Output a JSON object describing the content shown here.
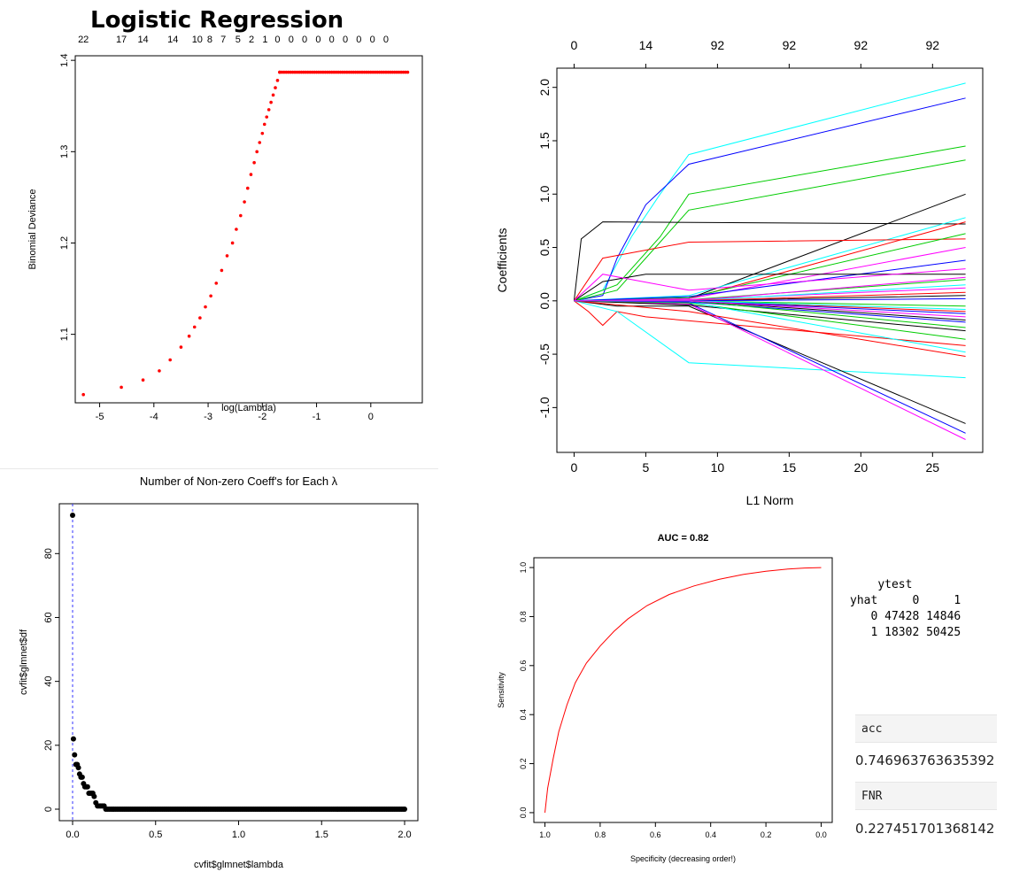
{
  "page_title": "Logistic Regression",
  "confusion": {
    "col_header": "ytest",
    "row_header": "yhat",
    "col_labels": [
      "0",
      "1"
    ],
    "rows": [
      {
        "label": "0",
        "values": [
          47428,
          14846
        ]
      },
      {
        "label": "1",
        "values": [
          18302,
          50425
        ]
      }
    ]
  },
  "metrics": [
    {
      "name": "acc",
      "value": "0.746963763635392"
    },
    {
      "name": "FNR",
      "value": "0.227451701368142"
    }
  ],
  "chart_data": [
    {
      "id": "cv",
      "type": "scatter",
      "title": "",
      "xlabel": "log(Lambda)",
      "ylabel": "Binomial Deviance",
      "xlim": [
        -5.45,
        0.95
      ],
      "ylim": [
        1.025,
        1.405
      ],
      "x_ticks": [
        -5,
        -4,
        -3,
        -2,
        -1,
        0
      ],
      "y_ticks": [
        1.1,
        1.2,
        1.3,
        1.4
      ],
      "top_axis_labels": [
        "22",
        "17",
        "14",
        "14",
        "10",
        "8",
        "7",
        "5",
        "2",
        "1",
        "0",
        "0",
        "0",
        "0",
        "0",
        "0",
        "0",
        "0",
        "0"
      ],
      "top_axis_positions": [
        -5.3,
        -4.6,
        -4.2,
        -3.65,
        -3.2,
        -2.97,
        -2.72,
        -2.45,
        -2.2,
        -1.95,
        -1.72,
        -1.47,
        -1.22,
        -0.97,
        -0.72,
        -0.47,
        -0.22,
        0.03,
        0.28
      ],
      "points": {
        "x": [
          -5.3,
          -4.6,
          -4.2,
          -3.9,
          -3.7,
          -3.5,
          -3.35,
          -3.25,
          -3.15,
          -3.05,
          -2.95,
          -2.85,
          -2.75,
          -2.65,
          -2.55,
          -2.48,
          -2.4,
          -2.33,
          -2.27,
          -2.21,
          -2.15,
          -2.1,
          -2.05,
          -2.0,
          -1.96,
          -1.92,
          -1.88,
          -1.84,
          -1.8,
          -1.76,
          -1.72,
          -1.68
        ],
        "y": [
          1.034,
          1.042,
          1.05,
          1.06,
          1.072,
          1.086,
          1.098,
          1.108,
          1.118,
          1.13,
          1.142,
          1.156,
          1.17,
          1.186,
          1.2,
          1.215,
          1.23,
          1.245,
          1.26,
          1.275,
          1.288,
          1.3,
          1.31,
          1.32,
          1.33,
          1.338,
          1.346,
          1.354,
          1.362,
          1.37,
          1.378,
          1.387
        ]
      },
      "plateau": {
        "x_from": -1.68,
        "x_to": 0.7,
        "step": 0.04,
        "y": 1.387
      },
      "color": "#ff0000"
    },
    {
      "id": "path",
      "type": "line",
      "title": "",
      "xlabel": "L1 Norm",
      "ylabel": "Coefficients",
      "xlim": [
        -1.2,
        28.5
      ],
      "ylim": [
        -1.42,
        2.18
      ],
      "x_ticks": [
        0,
        5,
        10,
        15,
        20,
        25
      ],
      "y_ticks": [
        -1.0,
        -0.5,
        0.0,
        0.5,
        1.0,
        1.5,
        2.0
      ],
      "y_tick_labels": [
        "-1.0",
        "-0.5",
        "0.0",
        "0.5",
        "1.0",
        "1.5",
        "2.0"
      ],
      "top_axis_labels": [
        "0",
        "14",
        "92",
        "92",
        "92",
        "92"
      ],
      "top_axis_positions": [
        0,
        5,
        10,
        15,
        20,
        25
      ],
      "series": [
        {
          "color": "#00ffff",
          "x": [
            0,
            2,
            4,
            6,
            8,
            27.3
          ],
          "y": [
            0,
            0.1,
            0.6,
            1.0,
            1.37,
            2.04
          ]
        },
        {
          "color": "#0000ff",
          "x": [
            0,
            2,
            3,
            5,
            8,
            27.3
          ],
          "y": [
            0,
            0.05,
            0.4,
            0.9,
            1.28,
            1.9
          ]
        },
        {
          "color": "#00cc00",
          "x": [
            0,
            3,
            6,
            8,
            27.3
          ],
          "y": [
            0,
            0.15,
            0.6,
            1.0,
            1.45
          ]
        },
        {
          "color": "#00cc00",
          "x": [
            0,
            3,
            6,
            8,
            27.3
          ],
          "y": [
            0,
            0.1,
            0.55,
            0.85,
            1.32
          ]
        },
        {
          "color": "#000000",
          "x": [
            0,
            0.5,
            2,
            27.3
          ],
          "y": [
            0,
            0.58,
            0.74,
            0.72
          ]
        },
        {
          "color": "#000000",
          "x": [
            0,
            8,
            27.3
          ],
          "y": [
            0,
            0.02,
            1.0
          ]
        },
        {
          "color": "#00ffff",
          "x": [
            0,
            8,
            27.3
          ],
          "y": [
            0,
            0.05,
            0.78
          ]
        },
        {
          "color": "#ff0000",
          "x": [
            0,
            2,
            8,
            27.3
          ],
          "y": [
            0,
            0.4,
            0.55,
            0.58
          ]
        },
        {
          "color": "#ff0000",
          "x": [
            0,
            8,
            27.3
          ],
          "y": [
            0,
            0.02,
            0.74
          ]
        },
        {
          "color": "#00cc00",
          "x": [
            0,
            8,
            27.3
          ],
          "y": [
            0,
            0.03,
            0.63
          ]
        },
        {
          "color": "#ff00ff",
          "x": [
            0,
            8,
            27.3
          ],
          "y": [
            0,
            0.02,
            0.5
          ]
        },
        {
          "color": "#0000ff",
          "x": [
            0,
            8,
            27.3
          ],
          "y": [
            0,
            0.04,
            0.38
          ]
        },
        {
          "color": "#000000",
          "x": [
            0,
            2,
            5,
            27.3
          ],
          "y": [
            0,
            0.18,
            0.25,
            0.25
          ]
        },
        {
          "color": "#ff00ff",
          "x": [
            0,
            2,
            8,
            27.3
          ],
          "y": [
            0,
            0.25,
            0.1,
            0.3
          ]
        },
        {
          "color": "#00cc00",
          "x": [
            0,
            8,
            27.3
          ],
          "y": [
            0,
            0.01,
            0.2
          ]
        },
        {
          "color": "#ff0000",
          "x": [
            0,
            1,
            2,
            3,
            5,
            27.3
          ],
          "y": [
            0,
            -0.1,
            -0.23,
            -0.1,
            -0.15,
            -0.42
          ]
        },
        {
          "color": "#00ffff",
          "x": [
            0,
            3,
            8,
            27.3
          ],
          "y": [
            0,
            -0.1,
            -0.58,
            -0.72
          ]
        },
        {
          "color": "#000000",
          "x": [
            0,
            3,
            8,
            27.3
          ],
          "y": [
            0,
            -0.05,
            -0.05,
            -1.15
          ]
        },
        {
          "color": "#0000ff",
          "x": [
            0,
            8,
            27.3
          ],
          "y": [
            0,
            -0.02,
            -1.24
          ]
        },
        {
          "color": "#ff00ff",
          "x": [
            0,
            8,
            27.3
          ],
          "y": [
            0,
            -0.03,
            -1.3
          ]
        },
        {
          "color": "#ff0000",
          "x": [
            0,
            8,
            27.3
          ],
          "y": [
            0,
            -0.1,
            -0.52
          ]
        },
        {
          "color": "#000000",
          "x": [
            0,
            8,
            27.3
          ],
          "y": [
            0,
            -0.04,
            -0.28
          ]
        },
        {
          "color": "#00cc00",
          "x": [
            0,
            8,
            27.3
          ],
          "y": [
            0,
            -0.02,
            -0.36
          ]
        },
        {
          "color": "#00ffff",
          "x": [
            0,
            8,
            27.3
          ],
          "y": [
            0,
            -0.01,
            -0.48
          ]
        },
        {
          "color": "#0000ff",
          "x": [
            0,
            8,
            27.3
          ],
          "y": [
            0,
            -0.01,
            -0.2
          ]
        },
        {
          "color": "#ff00ff",
          "x": [
            0,
            8,
            27.3
          ],
          "y": [
            0,
            0.01,
            0.12
          ]
        },
        {
          "color": "#ff0000",
          "x": [
            0,
            8,
            27.3
          ],
          "y": [
            0,
            0.0,
            -0.1
          ]
        },
        {
          "color": "#000000",
          "x": [
            0,
            8,
            27.3
          ],
          "y": [
            0,
            0.0,
            0.05
          ]
        },
        {
          "color": "#00cc00",
          "x": [
            0,
            8,
            27.3
          ],
          "y": [
            0,
            0.0,
            -0.05
          ]
        },
        {
          "color": "#00ffff",
          "x": [
            0,
            8,
            27.3
          ],
          "y": [
            0,
            0.0,
            0.15
          ]
        },
        {
          "color": "#0000ff",
          "x": [
            0,
            8,
            27.3
          ],
          "y": [
            0,
            0.0,
            -0.12
          ]
        },
        {
          "color": "#ff00ff",
          "x": [
            0,
            8,
            27.3
          ],
          "y": [
            0,
            0.0,
            0.22
          ]
        },
        {
          "color": "#000000",
          "x": [
            0,
            8,
            27.3
          ],
          "y": [
            0,
            0.0,
            -0.18
          ]
        },
        {
          "color": "#ff0000",
          "x": [
            0,
            8,
            27.3
          ],
          "y": [
            0,
            0.0,
            0.08
          ]
        },
        {
          "color": "#00cc00",
          "x": [
            0,
            8,
            27.3
          ],
          "y": [
            0,
            0.0,
            -0.25
          ]
        },
        {
          "color": "#0000ff",
          "x": [
            0,
            8,
            27.3
          ],
          "y": [
            0,
            0.0,
            0.02
          ]
        },
        {
          "color": "#00ffff",
          "x": [
            0,
            8,
            27.3
          ],
          "y": [
            0,
            0.0,
            -0.08
          ]
        },
        {
          "color": "#ff00ff",
          "x": [
            0,
            8,
            27.3
          ],
          "y": [
            0,
            0.0,
            -0.15
          ]
        }
      ]
    },
    {
      "id": "df",
      "type": "scatter",
      "title": "Number of Non-zero Coeff's for Each λ",
      "xlabel": "cvfit$glmnet$lambda",
      "ylabel": "cvfit$glmnet$df",
      "xlim": [
        -0.08,
        2.08
      ],
      "ylim": [
        -3.6,
        95.6
      ],
      "x_ticks": [
        0.0,
        0.5,
        1.0,
        1.5,
        2.0
      ],
      "x_tick_labels": [
        "0.0",
        "0.5",
        "1.0",
        "1.5",
        "2.0"
      ],
      "y_ticks": [
        0,
        20,
        40,
        60,
        80
      ],
      "vline_x": 0.0,
      "points": {
        "x": [
          0.0,
          0.005,
          0.012,
          0.02,
          0.028,
          0.035,
          0.042,
          0.05,
          0.058,
          0.066,
          0.074,
          0.082,
          0.09,
          0.098,
          0.106,
          0.114,
          0.122,
          0.13,
          0.14,
          0.15,
          0.16,
          0.17,
          0.18,
          0.19
        ],
        "y": [
          92,
          22,
          17,
          14,
          14,
          13,
          11,
          10,
          10,
          8,
          7,
          7,
          7,
          5,
          5,
          5,
          5,
          4,
          2,
          1,
          1,
          1,
          1,
          1
        ]
      },
      "zero_run": {
        "x_from": 0.2,
        "x_to": 2.0,
        "step": 0.01,
        "y": 0
      },
      "color": "#000000"
    },
    {
      "id": "roc",
      "type": "line",
      "title": "AUC =  0.82",
      "xlabel": "Specificity (decreasing order!)",
      "ylabel": "Sensitivity",
      "xlim": [
        1.04,
        -0.04
      ],
      "ylim": [
        -0.04,
        1.04
      ],
      "x_ticks": [
        1.0,
        0.8,
        0.6,
        0.4,
        0.2,
        0.0
      ],
      "x_tick_labels": [
        "1.0",
        "0.8",
        "0.6",
        "0.4",
        "0.2",
        "0.0"
      ],
      "y_ticks": [
        0.0,
        0.2,
        0.4,
        0.6,
        0.8,
        1.0
      ],
      "y_tick_labels": [
        "0.0",
        "0.2",
        "0.4",
        "0.6",
        "0.8",
        "1.0"
      ],
      "series": [
        {
          "color": "#ff0000",
          "x": [
            1.0,
            0.99,
            0.97,
            0.95,
            0.92,
            0.89,
            0.85,
            0.8,
            0.75,
            0.7,
            0.63,
            0.55,
            0.46,
            0.37,
            0.28,
            0.2,
            0.12,
            0.06,
            0.0
          ],
          "y": [
            0.0,
            0.1,
            0.22,
            0.33,
            0.44,
            0.53,
            0.61,
            0.68,
            0.74,
            0.79,
            0.845,
            0.89,
            0.925,
            0.952,
            0.972,
            0.985,
            0.994,
            0.998,
            1.0
          ]
        }
      ]
    }
  ]
}
